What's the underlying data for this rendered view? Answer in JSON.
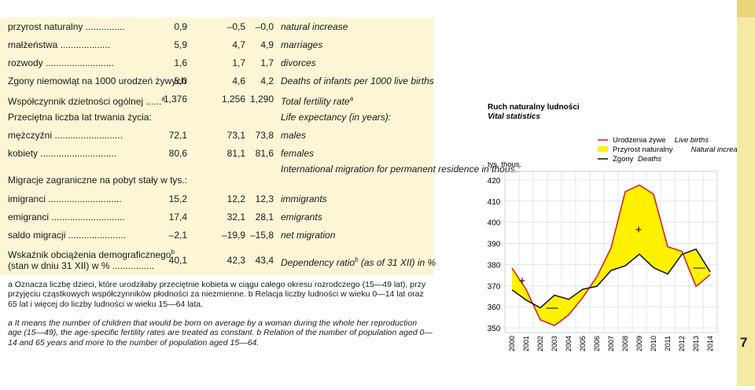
{
  "table": {
    "rows": [
      {
        "label": "przyrost naturalny ...............",
        "v1": "0,9",
        "v2": "–0,5",
        "v3": "–0,0",
        "en": "natural increase"
      },
      {
        "label": "małżeństwa ...................",
        "v1": "5,9",
        "v2": "4,7",
        "v3": "4,9",
        "en": "marriages"
      },
      {
        "label": "rozwody ..........................",
        "v1": "1,6",
        "v2": "1,7",
        "v3": "1,7",
        "en": "divorces"
      },
      {
        "label": "Zgony niemowląt na 1000 urodzeń żywych",
        "v1": "5,0",
        "v2": "4,6",
        "v3": "4,2",
        "en": "Deaths of infants per 1000 live births"
      },
      {
        "label": "Współczynnik dzietności ogólnej ......",
        "label_sup": "a",
        "v1": "1,376",
        "v2": "1,256",
        "v3": "1,290",
        "en": "Total fertility rate",
        "en_sup": "a"
      },
      {
        "label": "Przeciętna liczba lat trwania życia:",
        "v1": "",
        "v2": "",
        "v3": "",
        "en": "Life expectancy (in years):"
      },
      {
        "label": "mężczyźni ..........................",
        "v1": "72,1",
        "v2": "73,1",
        "v3": "73,8",
        "en": "males"
      },
      {
        "label": "kobiety .............................",
        "v1": "80,6",
        "v2": "81,1",
        "v3": "81,6",
        "en": "females"
      },
      {
        "label": "Migracje zagraniczne na pobyt stały w tys.:",
        "v1": "",
        "v2": "",
        "v3": "",
        "en": "International migration for permanent residence in thous.:"
      },
      {
        "label": "imigranci ............................",
        "v1": "15,2",
        "v2": "12,2",
        "v3": "12,3",
        "en": "immigrants"
      },
      {
        "label": "emigranci ............................",
        "v1": "17,4",
        "v2": "32,1",
        "v3": "28,1",
        "en": "emigrants"
      },
      {
        "label": "saldo migracji ......................",
        "v1": "–2,1",
        "v2": "–19,9",
        "v3": "–15,8",
        "en": "net migration"
      },
      {
        "label": "Wskaźnik obciążenia demograficznego",
        "label_sup": "b",
        "label2": "(stan w dniu 31 XII) w % ................",
        "v1": "40,1",
        "v2": "42,3",
        "v3": "43,4",
        "en": "Dependency ratio",
        "en_sup": "b",
        "en_tail": " (as of 31 XII) in %"
      }
    ]
  },
  "notes": {
    "pl": "a Oznacza liczbę dzieci, które urodziłaby przeciętnie kobieta w ciągu całego okresu rozrodczego (15—49 lat), przy przyjęciu cząstkowych współczynników płodności za niezmienne. b Relacja liczby ludności w wieku 0—14 lat oraz 65 lat i więcej do liczby ludności w wieku 15—64 lata.",
    "en": "a It means the number of children that would be born on average by a woman during the whole her reproduction age (15—49), the age-specific fertility rates are treated as constant. b Relation of the number of population aged 0—14 and 65 years and more to the number of population aged 15—64."
  },
  "chart_data": {
    "type": "line",
    "title": "Ruch naturalny ludności",
    "subtitle": "Vital statistics",
    "ylabel": "tys. thous.",
    "x": [
      "2000",
      "2001",
      "2002",
      "2003",
      "2004",
      "2005",
      "2006",
      "2007",
      "2008",
      "2009",
      "2010",
      "2011",
      "2012",
      "2013",
      "2014"
    ],
    "yticks": [
      "420",
      "410",
      "400",
      "390",
      "380",
      "370",
      "360",
      "350"
    ],
    "ylim": [
      350,
      420
    ],
    "series": [
      {
        "name": "Urodzenia żywe  Live births",
        "values": [
          378.3,
          368.2,
          353.8,
          351.1,
          356.1,
          364.4,
          374.2,
          387.9,
          414.5,
          417.6,
          413.3,
          388.4,
          386.3,
          369.6,
          375.2
        ],
        "color": "#d4252f"
      },
      {
        "name": "Zgony  Deaths",
        "values": [
          368.0,
          363.2,
          359.5,
          365.5,
          363.5,
          368.3,
          369.7,
          377.2,
          379.4,
          384.9,
          378.5,
          375.5,
          384.8,
          387.3,
          376.5
        ],
        "color": "#1a1a1a"
      }
    ],
    "legend": [
      {
        "pl": "Urodzenia żywe",
        "en": "Live births"
      },
      {
        "pl": "Przyrost naturalny",
        "en": "Natural increase"
      },
      {
        "pl": "Zgony",
        "en": "Deaths"
      }
    ],
    "fill_color": "#fff200",
    "annotations": [
      "+",
      "—",
      "+",
      "—"
    ],
    "legend_position": "top-right"
  },
  "page_number": "7"
}
